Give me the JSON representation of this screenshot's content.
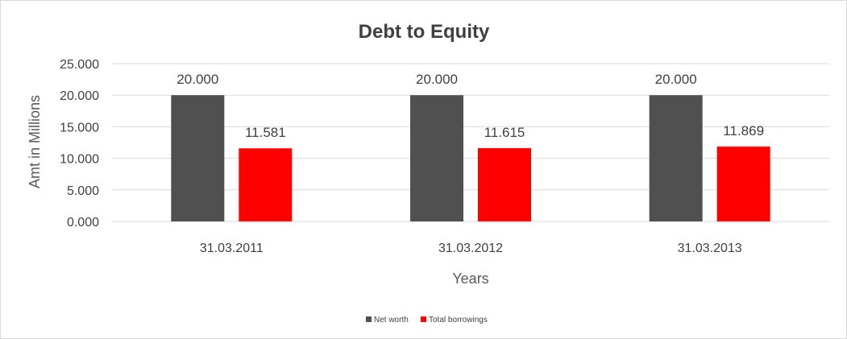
{
  "chart_data": {
    "type": "bar",
    "title": "Debt to Equity",
    "xlabel": "Years",
    "ylabel": "Amt in Millions",
    "categories": [
      "31.03.2011",
      "31.03.2012",
      "31.03.2013"
    ],
    "series": [
      {
        "name": "Net worth",
        "values": [
          20.0,
          20.0,
          20.0
        ],
        "labels": [
          "20.000",
          "20.000",
          "20.000"
        ],
        "color": "#505050"
      },
      {
        "name": "Total borrowings",
        "values": [
          11.581,
          11.615,
          11.869
        ],
        "labels": [
          "11.581",
          "11.615",
          "11.869"
        ],
        "color": "#ff0000"
      }
    ],
    "yticks": [
      "0.000",
      "5.000",
      "10.000",
      "15.000",
      "20.000",
      "25.000"
    ],
    "ylim": [
      0,
      25
    ],
    "grid": true,
    "legend_position": "bottom"
  }
}
